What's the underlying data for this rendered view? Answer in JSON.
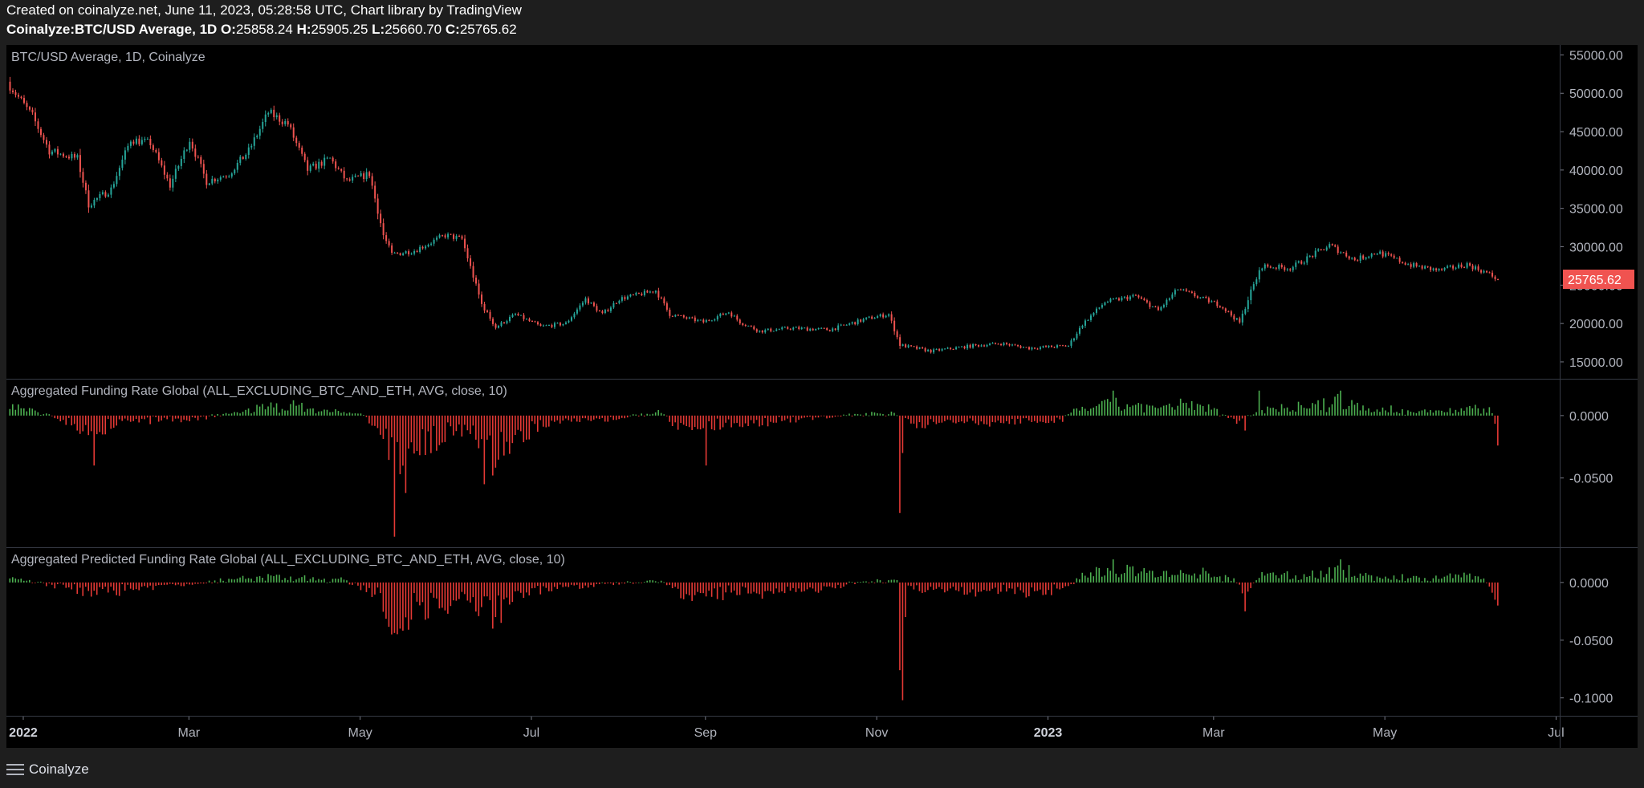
{
  "header": {
    "line1": "Created on coinalyze.net, June 11, 2023, 05:28:58 UTC, Chart library by TradingView",
    "symbol": "Coinalyze:BTC/USD Average, 1D",
    "o_key": "O:",
    "o": "25858.24",
    "h_key": "H:",
    "h": "25905.25",
    "l_key": "L:",
    "l": "25660.70",
    "c_key": "C:",
    "c": "25765.62"
  },
  "footer": {
    "brand": "Coinalyze",
    "menu_icon": "hamburger-menu-icon"
  },
  "colors": {
    "up": "#26a69a",
    "down": "#ef5350",
    "hist_pos": "#4caf50",
    "hist_neg": "#e53935",
    "bg": "#000000",
    "sep": "#363a45"
  },
  "x_labels": [
    {
      "label": "2022",
      "bold": true
    },
    {
      "label": "Mar",
      "bold": false
    },
    {
      "label": "May",
      "bold": false
    },
    {
      "label": "Jul",
      "bold": false
    },
    {
      "label": "Sep",
      "bold": false
    },
    {
      "label": "Nov",
      "bold": false
    },
    {
      "label": "2023",
      "bold": true
    },
    {
      "label": "Mar",
      "bold": false
    },
    {
      "label": "May",
      "bold": false
    },
    {
      "label": "Jul",
      "bold": false
    }
  ],
  "chart_data": [
    {
      "type": "candlestick",
      "title": "BTC/USD Average, 1D, Coinalyze",
      "last_price": "25765.62",
      "y_ticks": [
        "55000.00",
        "50000.00",
        "45000.00",
        "40000.00",
        "35000.00",
        "30000.00",
        "25000.00",
        "20000.00",
        "15000.00"
      ],
      "ylim": [
        12800,
        56300
      ],
      "x_range": [
        "2021-12-26",
        "2023-07-02"
      ],
      "close_anchors": [
        [
          "2021-12-27",
          51000
        ],
        [
          "2022-01-04",
          47000
        ],
        [
          "2022-01-10",
          42500
        ],
        [
          "2022-01-20",
          41500
        ],
        [
          "2022-01-24",
          35500
        ],
        [
          "2022-02-01",
          37500
        ],
        [
          "2022-02-08",
          44000
        ],
        [
          "2022-02-15",
          43500
        ],
        [
          "2022-02-22",
          38000
        ],
        [
          "2022-03-01",
          44000
        ],
        [
          "2022-03-07",
          38500
        ],
        [
          "2022-03-15",
          39500
        ],
        [
          "2022-03-22",
          42500
        ],
        [
          "2022-03-29",
          47500
        ],
        [
          "2022-04-05",
          46000
        ],
        [
          "2022-04-12",
          40000
        ],
        [
          "2022-04-20",
          41500
        ],
        [
          "2022-04-26",
          38500
        ],
        [
          "2022-05-04",
          39500
        ],
        [
          "2022-05-09",
          31500
        ],
        [
          "2022-05-12",
          29000
        ],
        [
          "2022-05-20",
          29500
        ],
        [
          "2022-05-31",
          31500
        ],
        [
          "2022-06-06",
          31000
        ],
        [
          "2022-06-13",
          22500
        ],
        [
          "2022-06-18",
          19500
        ],
        [
          "2022-06-25",
          21200
        ],
        [
          "2022-07-04",
          19600
        ],
        [
          "2022-07-13",
          20000
        ],
        [
          "2022-07-20",
          23200
        ],
        [
          "2022-07-26",
          21200
        ],
        [
          "2022-08-01",
          23200
        ],
        [
          "2022-08-14",
          24300
        ],
        [
          "2022-08-19",
          21200
        ],
        [
          "2022-08-31",
          20200
        ],
        [
          "2022-09-09",
          21500
        ],
        [
          "2022-09-13",
          20200
        ],
        [
          "2022-09-20",
          19000
        ],
        [
          "2022-10-01",
          19400
        ],
        [
          "2022-10-15",
          19200
        ],
        [
          "2022-10-29",
          20700
        ],
        [
          "2022-11-05",
          21200
        ],
        [
          "2022-11-09",
          17200
        ],
        [
          "2022-11-20",
          16400
        ],
        [
          "2022-12-05",
          17100
        ],
        [
          "2022-12-15",
          17400
        ],
        [
          "2022-12-25",
          16800
        ],
        [
          "2023-01-08",
          17100
        ],
        [
          "2023-01-13",
          19900
        ],
        [
          "2023-01-21",
          22800
        ],
        [
          "2023-02-01",
          23600
        ],
        [
          "2023-02-09",
          21700
        ],
        [
          "2023-02-16",
          24500
        ],
        [
          "2023-02-25",
          23200
        ],
        [
          "2023-03-03",
          22400
        ],
        [
          "2023-03-10",
          20100
        ],
        [
          "2023-03-14",
          24200
        ],
        [
          "2023-03-18",
          27500
        ],
        [
          "2023-03-28",
          27200
        ],
        [
          "2023-04-11",
          30200
        ],
        [
          "2023-04-20",
          28300
        ],
        [
          "2023-04-28",
          29300
        ],
        [
          "2023-05-10",
          27600
        ],
        [
          "2023-05-20",
          26900
        ],
        [
          "2023-05-30",
          27700
        ],
        [
          "2023-06-06",
          26600
        ],
        [
          "2023-06-10",
          25765.62
        ]
      ]
    },
    {
      "type": "histogram",
      "title": "Aggregated Funding Rate Global (ALL_EXCLUDING_BTC_AND_ETH, AVG, close, 10)",
      "y_ticks": [
        "0.0000",
        "-0.0500"
      ],
      "ylim": [
        -0.1055,
        0.0295
      ],
      "x_range": [
        "2021-12-26",
        "2023-07-02"
      ],
      "level_anchors": [
        [
          "2021-12-27",
          0.008
        ],
        [
          "2022-01-08",
          0.002
        ],
        [
          "2022-01-18",
          -0.007
        ],
        [
          "2022-01-25",
          -0.015
        ],
        [
          "2022-02-05",
          -0.005
        ],
        [
          "2022-02-20",
          -0.004
        ],
        [
          "2022-03-05",
          -0.002
        ],
        [
          "2022-03-25",
          0.006
        ],
        [
          "2022-04-05",
          0.009
        ],
        [
          "2022-04-20",
          0.004
        ],
        [
          "2022-05-01",
          0.001
        ],
        [
          "2022-05-08",
          -0.012
        ],
        [
          "2022-05-12",
          -0.04
        ],
        [
          "2022-05-20",
          -0.025
        ],
        [
          "2022-06-01",
          -0.018
        ],
        [
          "2022-06-10",
          -0.01
        ],
        [
          "2022-06-15",
          -0.035
        ],
        [
          "2022-06-20",
          -0.03
        ],
        [
          "2022-06-28",
          -0.015
        ],
        [
          "2022-07-10",
          -0.006
        ],
        [
          "2022-08-01",
          -0.003
        ],
        [
          "2022-08-15",
          0.004
        ],
        [
          "2022-08-22",
          -0.01
        ],
        [
          "2022-09-10",
          -0.008
        ],
        [
          "2022-10-01",
          -0.004
        ],
        [
          "2022-10-25",
          0.001
        ],
        [
          "2022-11-06",
          0.003
        ],
        [
          "2022-11-15",
          -0.008
        ],
        [
          "2022-12-01",
          -0.005
        ],
        [
          "2022-12-20",
          -0.006
        ],
        [
          "2023-01-05",
          -0.004
        ],
        [
          "2023-01-12",
          0.006
        ],
        [
          "2023-01-25",
          0.01
        ],
        [
          "2023-02-10",
          0.006
        ],
        [
          "2023-02-20",
          0.01
        ],
        [
          "2023-03-01",
          0.005
        ],
        [
          "2023-03-10",
          -0.006
        ],
        [
          "2023-03-18",
          0.006
        ],
        [
          "2023-04-05",
          0.008
        ],
        [
          "2023-04-15",
          0.013
        ],
        [
          "2023-04-25",
          0.006
        ],
        [
          "2023-05-15",
          0.003
        ],
        [
          "2023-06-01",
          0.006
        ],
        [
          "2023-06-08",
          0.004
        ],
        [
          "2023-06-09",
          -0.01
        ]
      ],
      "spikes": [
        [
          "2022-01-26",
          -0.04
        ],
        [
          "2022-05-13",
          -0.097
        ],
        [
          "2022-05-17",
          -0.062
        ],
        [
          "2022-06-14",
          -0.055
        ],
        [
          "2022-06-17",
          -0.048
        ],
        [
          "2022-09-01",
          -0.04
        ],
        [
          "2022-11-09",
          -0.078
        ],
        [
          "2022-11-10",
          -0.03
        ],
        [
          "2023-03-12",
          -0.012
        ],
        [
          "2023-03-17",
          0.02
        ],
        [
          "2023-01-24",
          0.02
        ],
        [
          "2023-04-15",
          0.02
        ],
        [
          "2023-06-10",
          -0.024
        ]
      ]
    },
    {
      "type": "histogram",
      "title": "Aggregated Predicted Funding Rate Global (ALL_EXCLUDING_BTC_AND_ETH, AVG, close, 10)",
      "y_ticks": [
        "0.0000",
        "-0.0500",
        "-0.1000"
      ],
      "ylim": [
        -0.1155,
        0.0305
      ],
      "x_range": [
        "2021-12-26",
        "2023-07-02"
      ],
      "level_anchors": [
        [
          "2021-12-27",
          0.004
        ],
        [
          "2022-01-15",
          -0.004
        ],
        [
          "2022-01-25",
          -0.012
        ],
        [
          "2022-02-10",
          -0.006
        ],
        [
          "2022-03-01",
          -0.002
        ],
        [
          "2022-03-25",
          0.006
        ],
        [
          "2022-04-10",
          0.004
        ],
        [
          "2022-04-25",
          0.002
        ],
        [
          "2022-05-08",
          -0.015
        ],
        [
          "2022-05-12",
          -0.035
        ],
        [
          "2022-05-25",
          -0.022
        ],
        [
          "2022-06-05",
          -0.018
        ],
        [
          "2022-06-15",
          -0.028
        ],
        [
          "2022-06-25",
          -0.012
        ],
        [
          "2022-07-10",
          -0.005
        ],
        [
          "2022-08-15",
          0.002
        ],
        [
          "2022-08-25",
          -0.012
        ],
        [
          "2022-09-15",
          -0.01
        ],
        [
          "2022-10-15",
          -0.005
        ],
        [
          "2022-10-28",
          0.002
        ],
        [
          "2022-11-08",
          0.001
        ],
        [
          "2022-11-15",
          -0.006
        ],
        [
          "2022-12-10",
          -0.008
        ],
        [
          "2022-12-28",
          -0.01
        ],
        [
          "2023-01-08",
          -0.004
        ],
        [
          "2023-01-14",
          0.008
        ],
        [
          "2023-01-25",
          0.012
        ],
        [
          "2023-02-10",
          0.007
        ],
        [
          "2023-02-25",
          0.008
        ],
        [
          "2023-03-08",
          0.003
        ],
        [
          "2023-03-12",
          -0.01
        ],
        [
          "2023-03-18",
          0.007
        ],
        [
          "2023-04-08",
          0.007
        ],
        [
          "2023-04-15",
          0.013
        ],
        [
          "2023-04-25",
          0.005
        ],
        [
          "2023-05-15",
          0.004
        ],
        [
          "2023-06-05",
          0.006
        ],
        [
          "2023-06-09",
          -0.01
        ]
      ],
      "spikes": [
        [
          "2022-05-12",
          -0.045
        ],
        [
          "2022-05-15",
          -0.04
        ],
        [
          "2022-06-17",
          -0.04
        ],
        [
          "2022-06-20",
          -0.035
        ],
        [
          "2022-11-09",
          -0.076
        ],
        [
          "2022-11-10",
          -0.102
        ],
        [
          "2022-11-11",
          -0.03
        ],
        [
          "2023-03-12",
          -0.025
        ],
        [
          "2023-04-15",
          0.02
        ],
        [
          "2023-01-24",
          0.02
        ],
        [
          "2023-06-10",
          -0.02
        ]
      ]
    }
  ]
}
